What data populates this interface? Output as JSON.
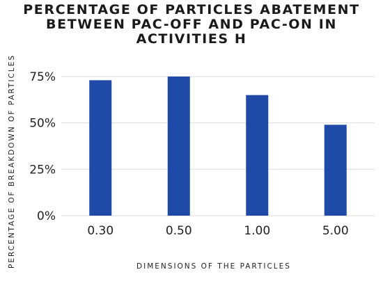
{
  "chart_data": {
    "type": "bar",
    "title_lines": [
      "PERCENTAGE OF PARTICLES ABATEMENT",
      "BETWEEN PAC-OFF AND PAC-ON  IN",
      "ACTIVITIES H"
    ],
    "categories": [
      "0.30",
      "0.50",
      "1.00",
      "5.00"
    ],
    "values": [
      73,
      75,
      65,
      49
    ],
    "xlabel": "DIMENSIONS OF THE PARTICLES",
    "ylabel": "PERCENTAGE OF BREAKDOWN OF PARTICLES",
    "ylim": [
      0,
      75
    ],
    "yticks": [
      0,
      25,
      50,
      75
    ],
    "ytick_labels": [
      "0%",
      "25%",
      "50%",
      "75%"
    ],
    "grid": true,
    "bar_color": "#1f4aa8",
    "grid_color": "#dcdcdc",
    "legend": "none"
  }
}
